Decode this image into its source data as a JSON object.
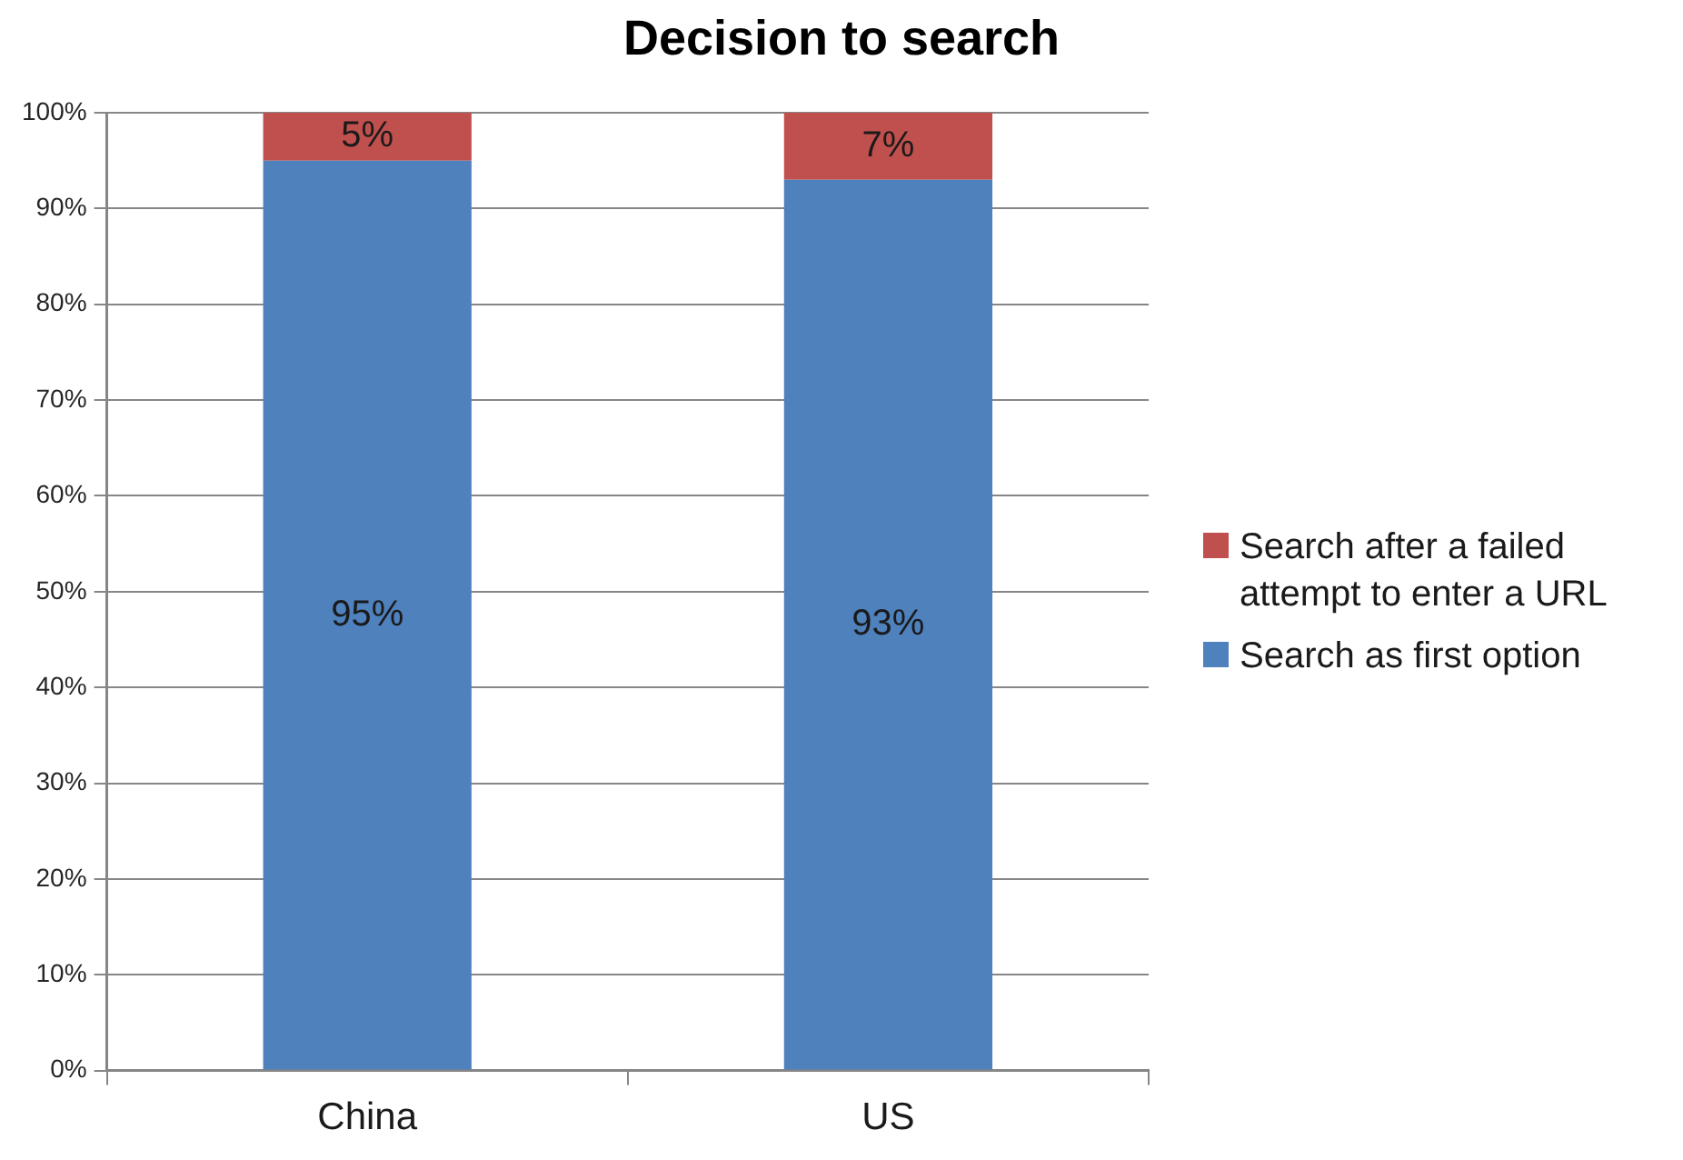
{
  "chart_data": {
    "type": "bar",
    "title": "Decision to search",
    "categories": [
      "China",
      "US"
    ],
    "series": [
      {
        "name": "Search as first option",
        "color": "#4f81bd",
        "values": [
          95,
          93
        ],
        "value_labels": [
          "95%",
          "93%"
        ]
      },
      {
        "name": "Search after a failed attempt to enter a URL",
        "color": "#c0504d",
        "values": [
          5,
          7
        ],
        "value_labels": [
          "5%",
          "7%"
        ]
      }
    ],
    "stacked": true,
    "ylim": [
      0,
      100
    ],
    "yticks": [
      {
        "value": 0,
        "label": "0%"
      },
      {
        "value": 10,
        "label": "10%"
      },
      {
        "value": 20,
        "label": "20%"
      },
      {
        "value": 30,
        "label": "30%"
      },
      {
        "value": 40,
        "label": "40%"
      },
      {
        "value": 50,
        "label": "50%"
      },
      {
        "value": 60,
        "label": "60%"
      },
      {
        "value": 70,
        "label": "70%"
      },
      {
        "value": 80,
        "label": "80%"
      },
      {
        "value": 90,
        "label": "90%"
      },
      {
        "value": 100,
        "label": "100%"
      }
    ],
    "grid": "y",
    "legend": "right"
  }
}
